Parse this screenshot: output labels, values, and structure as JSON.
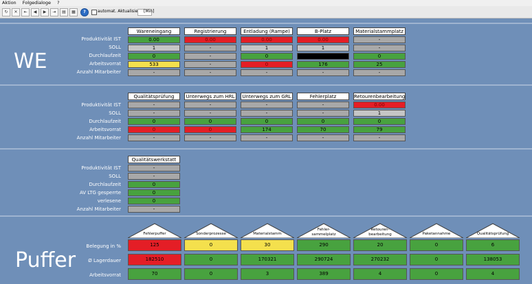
{
  "menu": [
    "Aktion",
    "Folgedialoge",
    "?"
  ],
  "toolbar": {
    "auto_label": "automat. Aktualisierung",
    "interval_label": "[Min]"
  },
  "we": {
    "title": "WE",
    "labels": [
      "Produktivität  IST",
      "SOLL",
      "Durchlaufzeit",
      "Arbeitsvorrat",
      "Anzahl Mitarbeiter"
    ],
    "cards": [
      {
        "name": "Wareneingang",
        "cells": [
          [
            "0.00",
            "green"
          ],
          [
            "1",
            "lgrey"
          ],
          [
            "0",
            "green"
          ],
          [
            "533",
            "yellow"
          ],
          [
            "-",
            "grey"
          ]
        ]
      },
      {
        "name": "Registrierung",
        "cells": [
          [
            "0.00",
            "red"
          ],
          [
            "-",
            "grey"
          ],
          [
            "-",
            "grey"
          ],
          [
            "-",
            "grey"
          ],
          [
            "-",
            "grey"
          ]
        ]
      },
      {
        "name": "Entladung (Rampe)",
        "cells": [
          [
            "0.00",
            "red"
          ],
          [
            "1",
            "lgrey"
          ],
          [
            "0",
            "green"
          ],
          [
            "0",
            "red"
          ],
          [
            "-",
            "grey"
          ]
        ]
      },
      {
        "name": "B-Platz",
        "cells": [
          [
            "0.00",
            "red"
          ],
          [
            "1",
            "lgrey"
          ],
          [
            "",
            "black"
          ],
          [
            "176",
            "green"
          ],
          [
            "-",
            "grey"
          ]
        ]
      },
      {
        "name": "Materialstammplatz",
        "cells": [
          [
            "-",
            "grey"
          ],
          [
            "-",
            "grey"
          ],
          [
            "0",
            "green"
          ],
          [
            "25",
            "green"
          ],
          [
            "-",
            "grey"
          ]
        ]
      }
    ]
  },
  "section2": {
    "labels": [
      "Produktivität  IST",
      "SOLL",
      "Durchlaufzeit",
      "Arbeitsvorrat",
      "Anzahl Mitarbeiter"
    ],
    "cards": [
      {
        "name": "Qualitätsprüfung",
        "cells": [
          [
            "-",
            "grey"
          ],
          [
            "-",
            "grey"
          ],
          [
            "0",
            "green"
          ],
          [
            "0",
            "red"
          ],
          [
            "-",
            "grey"
          ]
        ]
      },
      {
        "name": "Unterwegs zum HRL",
        "cells": [
          [
            "-",
            "grey"
          ],
          [
            "-",
            "grey"
          ],
          [
            "0",
            "green"
          ],
          [
            "0",
            "red"
          ],
          [
            "-",
            "grey"
          ]
        ]
      },
      {
        "name": "Unterwegs zum GRL",
        "cells": [
          [
            "-",
            "grey"
          ],
          [
            "-",
            "grey"
          ],
          [
            "0",
            "green"
          ],
          [
            "174",
            "green"
          ],
          [
            "-",
            "grey"
          ]
        ]
      },
      {
        "name": "Fehlerplatz",
        "cells": [
          [
            "-",
            "grey"
          ],
          [
            "-",
            "grey"
          ],
          [
            "0",
            "green"
          ],
          [
            "70",
            "green"
          ],
          [
            "-",
            "grey"
          ]
        ]
      },
      {
        "name": "Retourenbearbeitung",
        "cells": [
          [
            "0.00",
            "red"
          ],
          [
            "1",
            "lgrey"
          ],
          [
            "0",
            "green"
          ],
          [
            "79",
            "green"
          ],
          [
            "-",
            "grey"
          ]
        ]
      }
    ]
  },
  "section3": {
    "labels": [
      "Produktivität  IST",
      "SOLL",
      "Durchlaufzeit",
      "AV LTG gesperrte",
      "verlesene",
      "Anzahl Mitarbeiter"
    ],
    "cards": [
      {
        "name": "Qualitätswerkstatt",
        "cells": [
          [
            "-",
            "grey"
          ],
          [
            "-",
            "grey"
          ],
          [
            "0",
            "green"
          ],
          [
            "0",
            "green"
          ],
          [
            "0",
            "green"
          ],
          [
            "-",
            "grey"
          ]
        ]
      }
    ]
  },
  "puffer": {
    "title": "Puffer",
    "labels": [
      "Belegung in %",
      "Ø Lagerdauer",
      "Arbeitsvorrat"
    ],
    "cards": [
      {
        "name": [
          "Fehlerpuffer"
        ],
        "cells": [
          [
            "125",
            "red"
          ],
          [
            "182510",
            "red"
          ],
          [
            "70",
            "green"
          ]
        ]
      },
      {
        "name": [
          "Sonderprozesse"
        ],
        "cells": [
          [
            "0",
            "yellow"
          ],
          [
            "0",
            "green"
          ],
          [
            "0",
            "green"
          ]
        ]
      },
      {
        "name": [
          "Materialstamm"
        ],
        "cells": [
          [
            "30",
            "yellow"
          ],
          [
            "170321",
            "green"
          ],
          [
            "3",
            "green"
          ]
        ]
      },
      {
        "name": [
          "Fehler-",
          "sammelplatz"
        ],
        "cells": [
          [
            "290",
            "green"
          ],
          [
            "290724",
            "green"
          ],
          [
            "389",
            "green"
          ]
        ]
      },
      {
        "name": [
          "Retouren-",
          "bearbeitung"
        ],
        "cells": [
          [
            "20",
            "green"
          ],
          [
            "270232",
            "green"
          ],
          [
            "4",
            "green"
          ]
        ]
      },
      {
        "name": [
          "Paketannahme"
        ],
        "cells": [
          [
            "0",
            "green"
          ],
          [
            "0",
            "green"
          ],
          [
            "0",
            "green"
          ]
        ]
      },
      {
        "name": [
          "Qualitätsprüfung"
        ],
        "cells": [
          [
            "6",
            "green"
          ],
          [
            "138053",
            "green"
          ],
          [
            "4",
            "green"
          ]
        ]
      }
    ]
  },
  "colors": {
    "background": "#6f8fb8",
    "green": "#48a23f",
    "red": "#e41e26",
    "yellow": "#f4e04d",
    "grey": "#a8a8a8"
  }
}
